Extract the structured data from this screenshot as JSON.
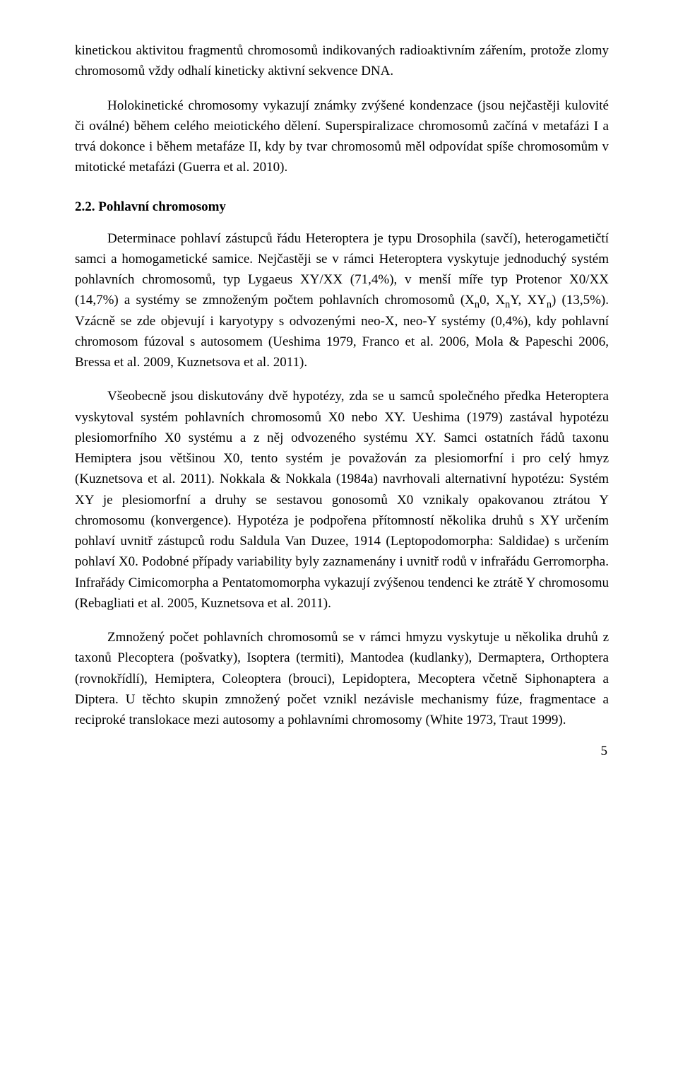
{
  "intro": {
    "p1": "kinetickou aktivitou fragmentů chromosomů indikovaných radioaktivním zářením, protože zlomy chromosomů vždy odhalí kineticky aktivní sekvence DNA.",
    "p2": "Holokinetické chromosomy vykazují známky zvýšené kondenzace (jsou nejčastěji kulovité či oválné) během celého meiotického dělení. Superspiralizace chromosomů začíná v metafázi I a trvá dokonce i během metafáze II, kdy by tvar chromosomů měl odpovídat spíše chromosomům v mitotické metafázi (Guerra et al. 2010)."
  },
  "section": {
    "heading": "2.2. Pohlavní chromosomy",
    "p1_a": "Determinace pohlaví zástupců řádu Heteroptera je typu Drosophila (savčí), heterogametičtí samci a homogametické samice. Nejčastěji se v rámci Heteroptera vyskytuje jednoduchý systém pohlavních chromosomů, typ Lygaeus XY/XX (71,4%), v menší míře typ Protenor X0/XX (14,7%) a systémy se zmnoženým počtem pohlavních chromosomů (X",
    "p1_b": "0, X",
    "p1_c": "Y, XY",
    "p1_d": ") (13,5%). Vzácně se zde objevují i karyotypy s odvozenými neo-X, neo-Y systémy (0,4%), kdy pohlavní chromosom fúzoval s autosomem (Ueshima 1979, Franco et al. 2006, Mola & Papeschi 2006, Bressa et al. 2009, Kuznetsova et al. 2011).",
    "p2": "Všeobecně jsou diskutovány dvě hypotézy, zda se u samců společného předka Heteroptera vyskytoval systém pohlavních chromosomů X0 nebo XY. Ueshima (1979) zastával  hypotézu plesiomorfního X0 systému a z něj odvozeného systému XY. Samci ostatních řádů taxonu Hemiptera jsou většinou X0, tento systém je považován za plesiomorfní i pro celý hmyz (Kuznetsova et al. 2011). Nokkala & Nokkala (1984a) navrhovali alternativní hypotézu: Systém XY je plesiomorfní a druhy se sestavou gonosomů X0 vznikaly opakovanou ztrátou Y chromosomu (konvergence). Hypotéza je podpořena přítomností několika druhů s XY určením pohlaví uvnitř zástupců rodu Saldula Van Duzee, 1914 (Leptopodomorpha: Saldidae) s určením pohlaví X0. Podobné případy variability byly zaznamenány i uvnitř rodů v infrařádu Gerromorpha. Infrařády Cimicomorpha a Pentatomomorpha vykazují zvýšenou tendenci ke ztrátě Y chromosomu (Rebagliati et al. 2005, Kuznetsova et al. 2011).",
    "p3": "Zmnožený počet pohlavních chromosomů se v rámci hmyzu vyskytuje u několika druhů z taxonů Plecoptera (pošvatky), Isoptera (termiti), Mantodea (kudlanky), Dermaptera, Orthoptera (rovnokřídlí), Hemiptera, Coleoptera (brouci), Lepidoptera, Mecoptera včetně Siphonaptera a Diptera. U těchto skupin zmnožený počet vznikl nezávisle mechanismy fúze, fragmentace a reciproké translokace mezi autosomy a pohlavními chromosomy (White 1973, Traut 1999)."
  },
  "sub_n": "n",
  "pageNumber": "5"
}
